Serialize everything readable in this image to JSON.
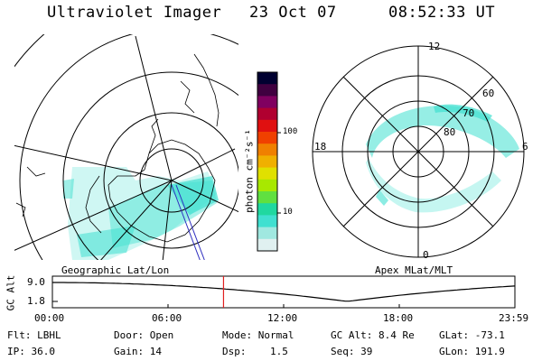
{
  "header": {
    "title": "Ultraviolet Imager",
    "date": "23 Oct 07",
    "time": "08:52:33 UT"
  },
  "left_panel": {
    "caption": "Geographic Lat/Lon"
  },
  "right_panel": {
    "caption": "Apex MLat/MLT",
    "mlt_labels": {
      "top": "12",
      "left": "18",
      "right": "6",
      "bottom": "0"
    },
    "lat_labels": [
      "60",
      "70",
      "80"
    ]
  },
  "colorbar": {
    "unit_label": "photon cm⁻²s⁻¹",
    "ticks": [
      "100",
      "10"
    ],
    "colors": [
      "#000030",
      "#400040",
      "#800060",
      "#b00030",
      "#e01010",
      "#f04000",
      "#f08000",
      "#f0b000",
      "#e0e000",
      "#a8e800",
      "#60e040",
      "#20d8a0",
      "#40e0d0",
      "#a0e8e0",
      "#e0f0f0"
    ]
  },
  "gc_alt_plot": {
    "ylabel": "GC Alt",
    "yticks": [
      "9.0",
      "1.8"
    ],
    "xticks": [
      "00:00",
      "06:00",
      "12:00",
      "18:00",
      "23:59"
    ],
    "marker_hour": 8.88
  },
  "footer": {
    "row1": [
      "Flt: LBHL",
      "Door: Open",
      "Mode: Normal",
      "GC Alt: 8.4 Re",
      "GLat: -73.1"
    ],
    "row2": [
      "IP: 36.0",
      "Gain: 14",
      "Dsp:    1.5",
      "Seq: 39",
      "GLon: 191.9"
    ]
  },
  "colors": {
    "aurora": "#40e0d0",
    "marker": "#e02020"
  }
}
